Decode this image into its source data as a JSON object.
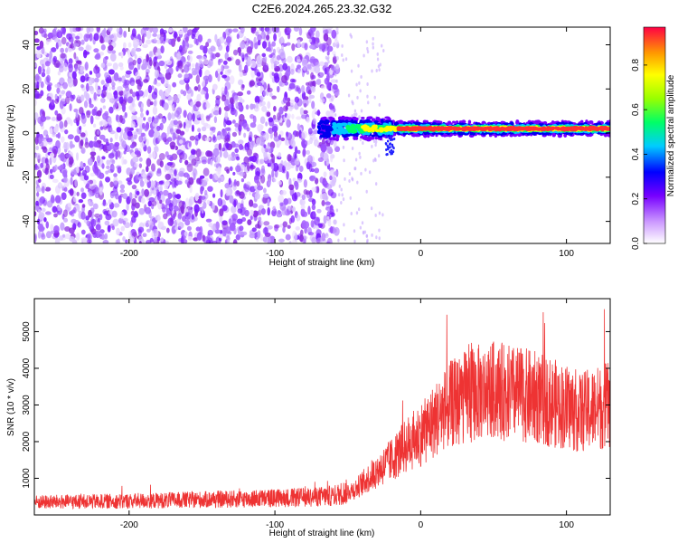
{
  "chart_data": [
    {
      "type": "heatmap",
      "title": "C2E6.2024.265.23.32.G32",
      "xlabel": "Height of straight line (km)",
      "ylabel": "Frequency (Hz)",
      "xlim": [
        -265,
        130
      ],
      "ylim": [
        -50,
        48
      ],
      "x_ticks": [
        -200,
        -100,
        0,
        100
      ],
      "y_ticks": [
        -40,
        -20,
        0,
        20,
        40
      ],
      "colorbar": {
        "label": "Normalized spectral amplitude",
        "range": [
          0,
          0.97
        ],
        "ticks": [
          0.0,
          0.2,
          0.4,
          0.6,
          0.8
        ]
      },
      "features": {
        "noise_region_x": [
          -265,
          -65
        ],
        "signal_band_x": [
          -70,
          130
        ],
        "signal_band_center_hz": 2,
        "peak_band_x": [
          -15,
          130
        ]
      }
    },
    {
      "type": "line",
      "xlabel": "Height of straight line (km)",
      "ylabel": "SNR (10 * v/v)",
      "xlim": [
        -265,
        130
      ],
      "ylim": [
        0,
        5900
      ],
      "x_ticks": [
        -200,
        -100,
        0,
        100
      ],
      "y_ticks": [
        1000,
        2000,
        3000,
        4000,
        5000
      ],
      "color": "#ee3333",
      "series": [
        {
          "name": "SNR",
          "x": [
            -265,
            -240,
            -200,
            -160,
            -120,
            -80,
            -60,
            -45,
            -30,
            -20,
            -10,
            0,
            10,
            20,
            35,
            50,
            65,
            80,
            95,
            110,
            120,
            130
          ],
          "values": [
            350,
            360,
            380,
            410,
            440,
            480,
            520,
            700,
            1200,
            1500,
            1900,
            2200,
            2600,
            3000,
            3300,
            3400,
            3300,
            3200,
            3000,
            2800,
            2900,
            3000
          ]
        }
      ]
    }
  ]
}
